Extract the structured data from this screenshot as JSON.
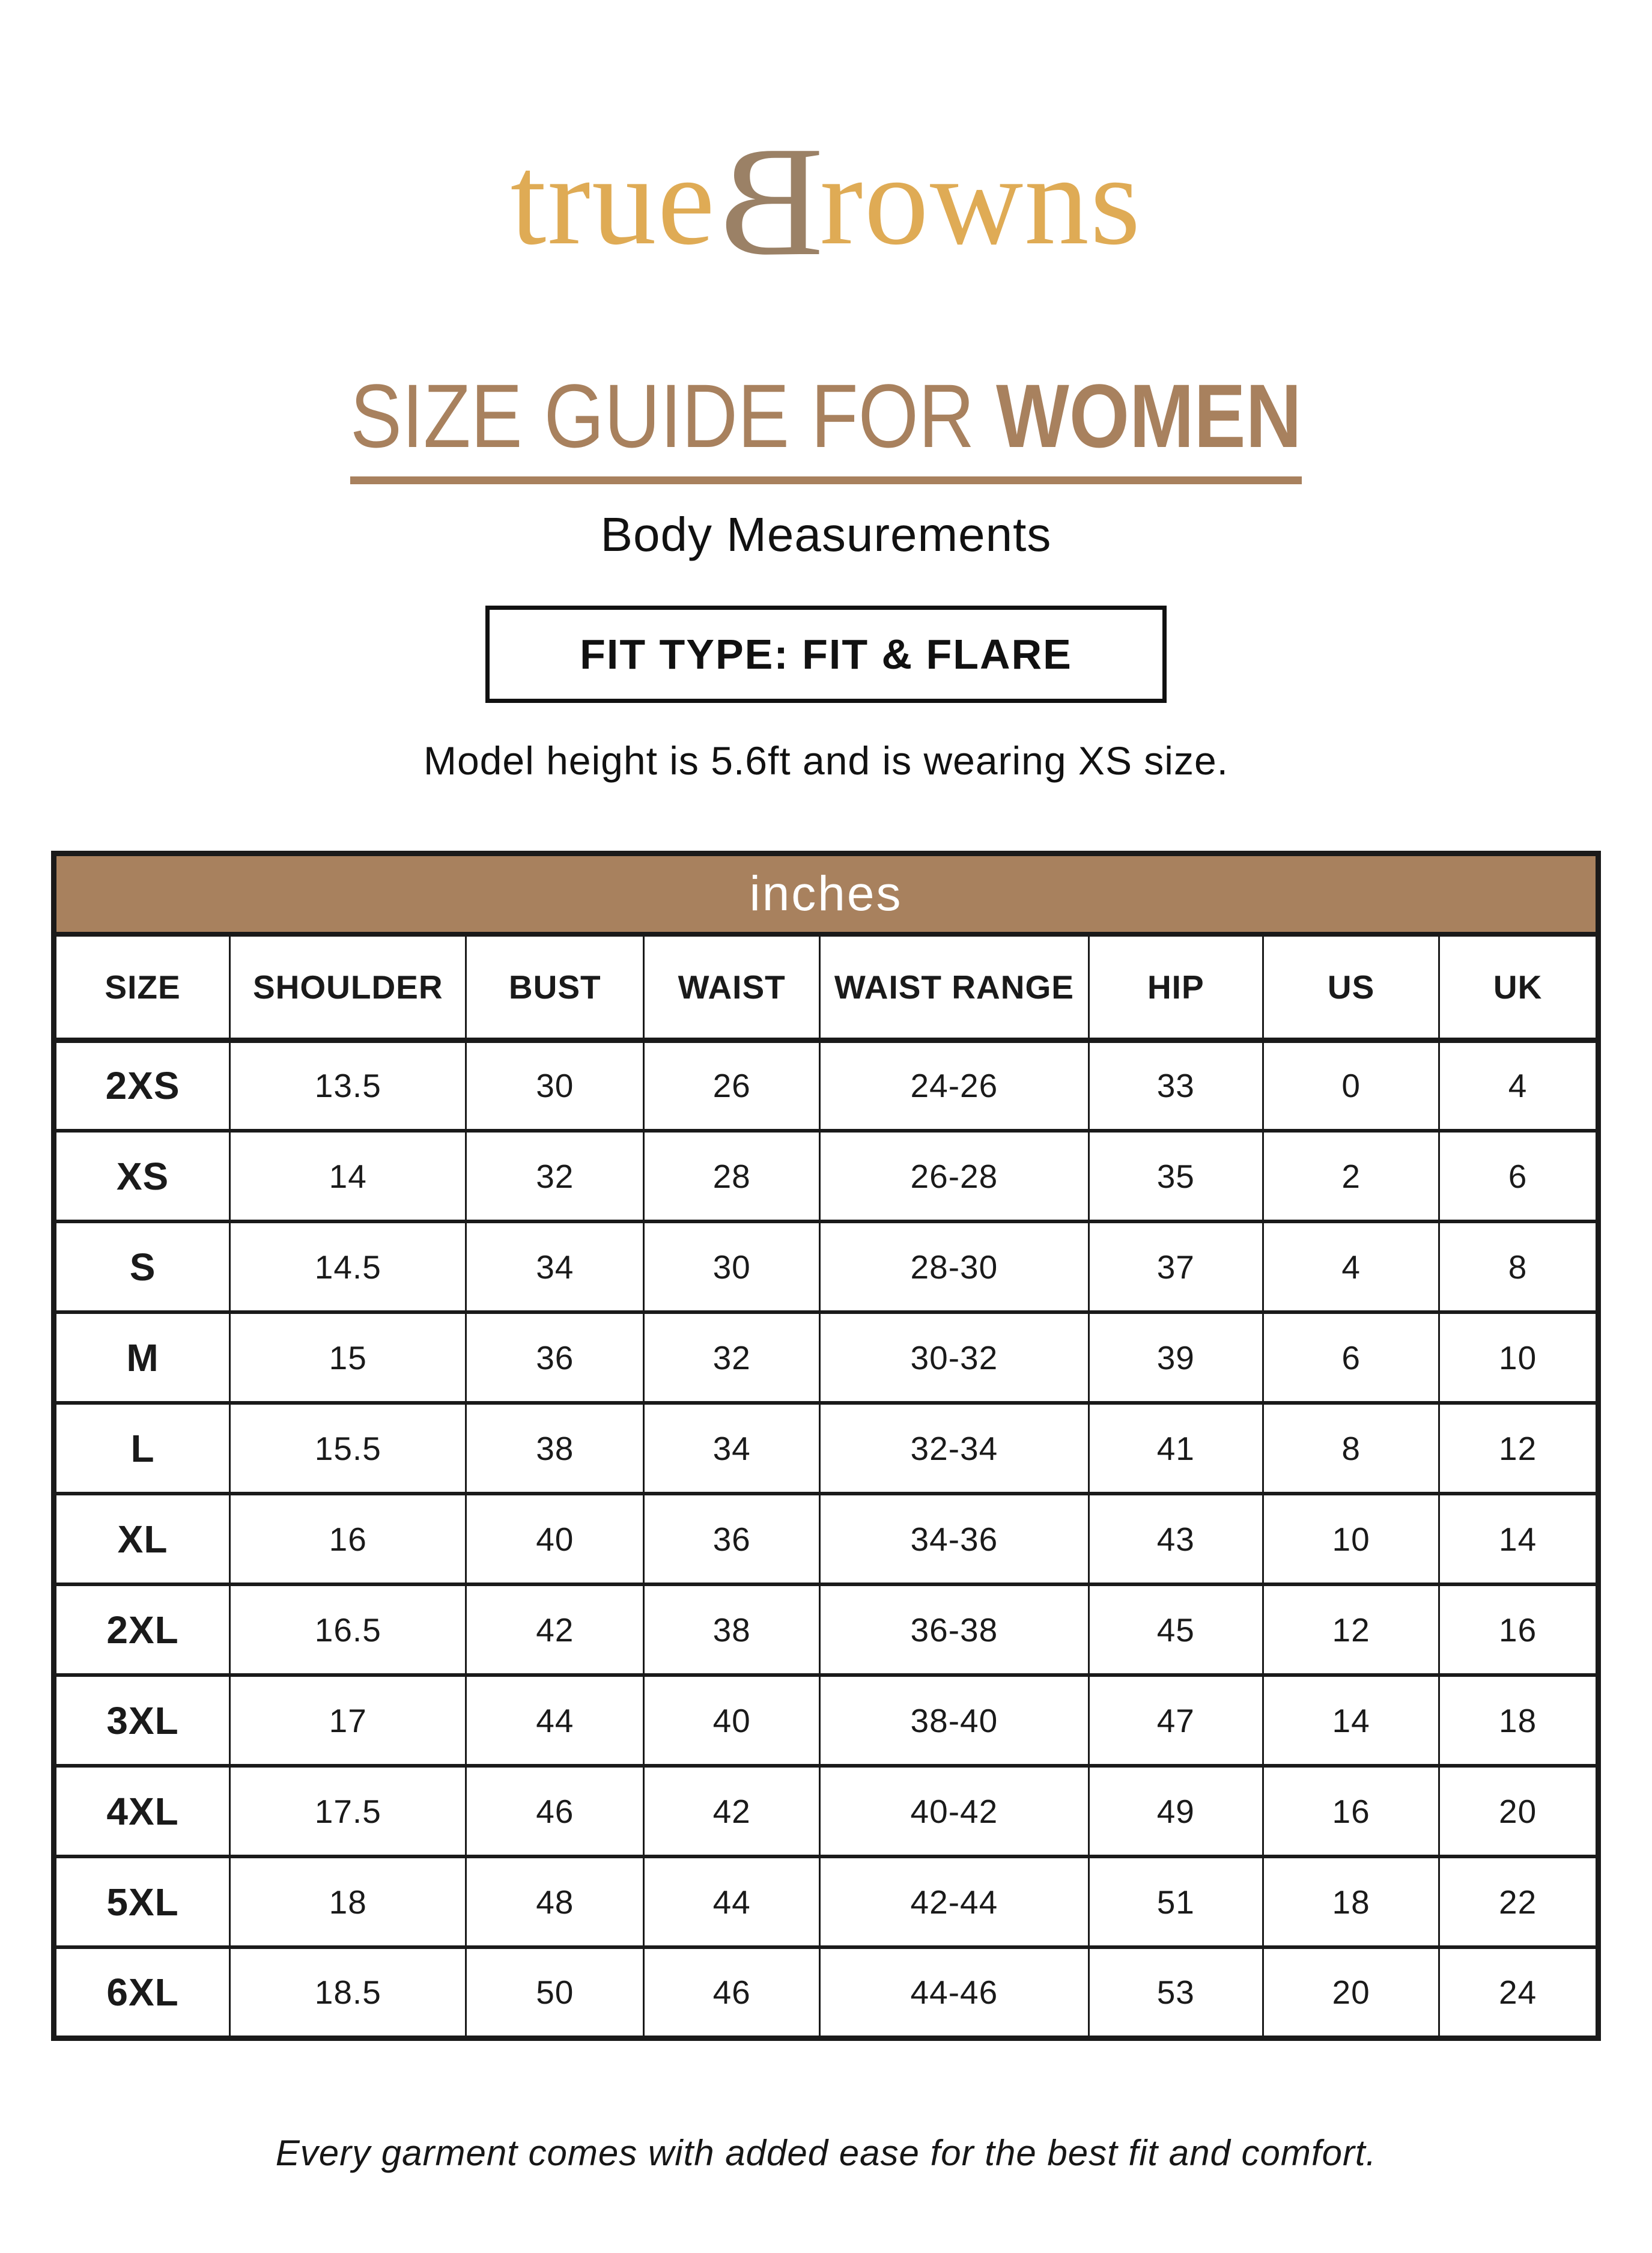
{
  "theme": {
    "brown": "#A8815E",
    "gold": "#DFAB55",
    "taupe": "#9B8166"
  },
  "brand": {
    "logo_part1": "true",
    "logo_part2": "B",
    "logo_part3": "rowns"
  },
  "header": {
    "title_regular": "SIZE GUIDE FOR ",
    "title_bold": "WOMEN",
    "subtitle": "Body Measurements",
    "fit_type": "FIT TYPE: FIT & FLARE",
    "model_note": "Model height is 5.6ft and is wearing XS size."
  },
  "table": {
    "unit_label": "inches",
    "columns": [
      "SIZE",
      "SHOULDER",
      "BUST",
      "WAIST",
      "WAIST RANGE",
      "HIP",
      "US",
      "UK"
    ],
    "column_widths_pct": [
      11.4,
      15.3,
      11.5,
      11.4,
      17.4,
      11.3,
      11.4,
      10.3
    ],
    "rows": [
      [
        "2XS",
        "13.5",
        "30",
        "26",
        "24-26",
        "33",
        "0",
        "4"
      ],
      [
        "XS",
        "14",
        "32",
        "28",
        "26-28",
        "35",
        "2",
        "6"
      ],
      [
        "S",
        "14.5",
        "34",
        "30",
        "28-30",
        "37",
        "4",
        "8"
      ],
      [
        "M",
        "15",
        "36",
        "32",
        "30-32",
        "39",
        "6",
        "10"
      ],
      [
        "L",
        "15.5",
        "38",
        "34",
        "32-34",
        "41",
        "8",
        "12"
      ],
      [
        "XL",
        "16",
        "40",
        "36",
        "34-36",
        "43",
        "10",
        "14"
      ],
      [
        "2XL",
        "16.5",
        "42",
        "38",
        "36-38",
        "45",
        "12",
        "16"
      ],
      [
        "3XL",
        "17",
        "44",
        "40",
        "38-40",
        "47",
        "14",
        "18"
      ],
      [
        "4XL",
        "17.5",
        "46",
        "42",
        "40-42",
        "49",
        "16",
        "20"
      ],
      [
        "5XL",
        "18",
        "48",
        "44",
        "42-44",
        "51",
        "18",
        "22"
      ],
      [
        "6XL",
        "18.5",
        "50",
        "46",
        "44-46",
        "53",
        "20",
        "24"
      ]
    ]
  },
  "footer": {
    "note": "Every garment comes with added ease for the best fit and comfort."
  }
}
